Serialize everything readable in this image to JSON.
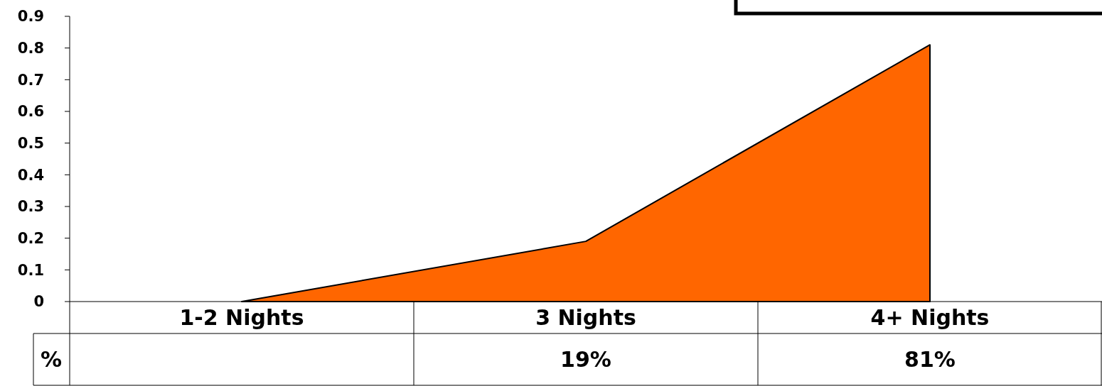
{
  "chart_data": {
    "type": "area",
    "categories": [
      "1-2 Nights",
      "3 Nights",
      "4+ Nights"
    ],
    "series": [
      {
        "name": "%",
        "color": "#ff6600",
        "values": [
          0,
          0.19,
          0.81
        ],
        "value_labels": [
          null,
          "19%",
          "81%"
        ]
      }
    ],
    "ylim": [
      0,
      0.9
    ],
    "yticks": [
      0,
      0.1,
      0.2,
      0.3,
      0.4,
      0.5,
      0.6,
      0.7,
      0.8,
      0.9
    ],
    "grid": false
  }
}
